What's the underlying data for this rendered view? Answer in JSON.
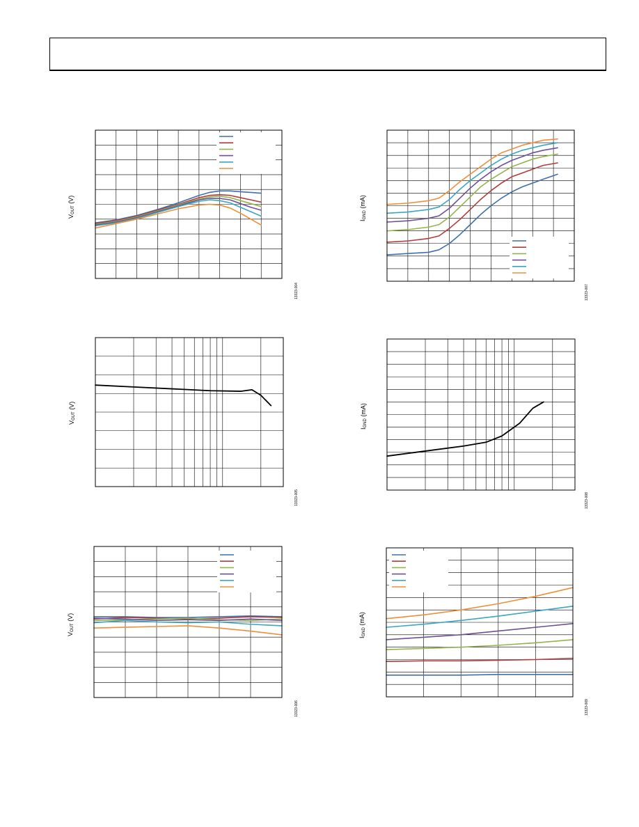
{
  "header": {
    "title": ""
  },
  "colors": {
    "blue": "#3f6fad",
    "red": "#b13c3a",
    "green": "#92b44a",
    "purple": "#6f4f95",
    "cyan": "#3aa6c4",
    "orange": "#ef8e3a",
    "black": "#000000",
    "grid": "#000000"
  },
  "chart_data": [
    {
      "id": "c1",
      "type": "line",
      "ylabel_main": "V",
      "ylabel_sub": "OUT",
      "ylabel_unit": " (V)",
      "fig_id": "13323-004",
      "xscale": "linear",
      "xlim": [
        0,
        9
      ],
      "ylim": [
        0,
        10
      ],
      "xdiv": 9,
      "ydiv": 10,
      "grid": true,
      "legend": "top-right",
      "legend_entries": 6,
      "series": [
        {
          "color": "blue",
          "x": [
            0,
            1,
            2,
            3,
            4,
            5,
            5.5,
            6,
            6.5,
            7,
            7.5,
            8
          ],
          "y": [
            3.75,
            3.95,
            4.25,
            4.65,
            5.1,
            5.6,
            5.8,
            5.9,
            5.9,
            5.85,
            5.8,
            5.75
          ]
        },
        {
          "color": "red",
          "x": [
            0,
            1,
            2,
            3,
            4,
            5,
            5.5,
            6,
            6.5,
            7,
            7.5,
            8
          ],
          "y": [
            3.7,
            3.9,
            4.2,
            4.6,
            5.0,
            5.45,
            5.6,
            5.65,
            5.6,
            5.45,
            5.3,
            5.15
          ]
        },
        {
          "color": "green",
          "x": [
            0,
            1,
            2,
            3,
            4,
            5,
            5.5,
            6,
            6.5,
            7,
            7.5,
            8
          ],
          "y": [
            3.65,
            3.85,
            4.15,
            4.55,
            4.95,
            5.35,
            5.5,
            5.55,
            5.45,
            5.25,
            5.05,
            4.85
          ]
        },
        {
          "color": "purple",
          "x": [
            0,
            1,
            2,
            3,
            4,
            5,
            5.5,
            6,
            6.5,
            7,
            7.5,
            8
          ],
          "y": [
            3.6,
            3.8,
            4.1,
            4.5,
            4.9,
            5.3,
            5.4,
            5.4,
            5.3,
            5.05,
            4.8,
            4.6
          ]
        },
        {
          "color": "cyan",
          "x": [
            0,
            1,
            2,
            3,
            4,
            5,
            5.5,
            6,
            6.5,
            7,
            7.5,
            8
          ],
          "y": [
            3.55,
            3.75,
            4.05,
            4.45,
            4.85,
            5.2,
            5.3,
            5.25,
            5.1,
            4.8,
            4.5,
            4.2
          ]
        },
        {
          "color": "orange",
          "x": [
            0,
            1,
            2,
            3,
            4,
            5,
            5.5,
            6,
            6.5,
            7,
            7.5,
            8
          ],
          "y": [
            3.4,
            3.7,
            4.0,
            4.35,
            4.7,
            4.95,
            5.0,
            4.95,
            4.75,
            4.4,
            4.0,
            3.6
          ]
        }
      ]
    },
    {
      "id": "c2",
      "type": "line",
      "ylabel_main": "I",
      "ylabel_sub": "GND",
      "ylabel_unit": " (mA)",
      "fig_id": "13323-007",
      "xscale": "linear",
      "xlim": [
        0,
        9
      ],
      "ylim": [
        0,
        12
      ],
      "xdiv": 9,
      "ydiv": 12,
      "grid": true,
      "legend": "bottom-right",
      "legend_entries": 6,
      "series": [
        {
          "color": "blue",
          "x": [
            0,
            1,
            2,
            2.5,
            3,
            3.5,
            4,
            4.5,
            5,
            5.5,
            6,
            6.5,
            7,
            7.5,
            8.2
          ],
          "y": [
            2.1,
            2.2,
            2.3,
            2.5,
            3.0,
            3.7,
            4.5,
            5.3,
            6.0,
            6.6,
            7.1,
            7.5,
            7.8,
            8.1,
            8.5
          ]
        },
        {
          "color": "red",
          "x": [
            0,
            1,
            2,
            2.5,
            3,
            3.5,
            4,
            4.5,
            5,
            5.5,
            6,
            6.5,
            7,
            7.5,
            8.2
          ],
          "y": [
            3.1,
            3.2,
            3.4,
            3.6,
            4.2,
            4.9,
            5.7,
            6.5,
            7.2,
            7.8,
            8.3,
            8.6,
            8.9,
            9.2,
            9.4
          ]
        },
        {
          "color": "green",
          "x": [
            0,
            1,
            2,
            2.5,
            3,
            3.5,
            4,
            4.5,
            5,
            5.5,
            6,
            6.5,
            7,
            7.5,
            8.2
          ],
          "y": [
            4.0,
            4.1,
            4.3,
            4.5,
            5.1,
            5.9,
            6.7,
            7.5,
            8.1,
            8.6,
            9.1,
            9.4,
            9.7,
            9.9,
            10.1
          ]
        },
        {
          "color": "purple",
          "x": [
            0,
            1,
            2,
            2.5,
            3,
            3.5,
            4,
            4.5,
            5,
            5.5,
            6,
            6.5,
            7,
            7.5,
            8.2
          ],
          "y": [
            4.7,
            4.8,
            5.0,
            5.2,
            5.8,
            6.6,
            7.4,
            8.1,
            8.7,
            9.2,
            9.6,
            9.9,
            10.2,
            10.4,
            10.6
          ]
        },
        {
          "color": "cyan",
          "x": [
            0,
            1,
            2,
            2.5,
            3,
            3.5,
            4,
            4.5,
            5,
            5.5,
            6,
            6.5,
            7,
            7.5,
            8.2
          ],
          "y": [
            5.4,
            5.5,
            5.7,
            5.9,
            6.5,
            7.3,
            8.0,
            8.6,
            9.2,
            9.7,
            10.1,
            10.4,
            10.6,
            10.8,
            11.0
          ]
        },
        {
          "color": "orange",
          "x": [
            0,
            1,
            2,
            2.5,
            3,
            3.5,
            4,
            4.5,
            5,
            5.5,
            6,
            6.5,
            7,
            7.5,
            8.2
          ],
          "y": [
            6.1,
            6.2,
            6.4,
            6.6,
            7.2,
            7.9,
            8.5,
            9.1,
            9.7,
            10.2,
            10.5,
            10.8,
            11.0,
            11.2,
            11.3
          ]
        }
      ]
    },
    {
      "id": "c3",
      "type": "line",
      "ylabel_main": "V",
      "ylabel_sub": "OUT",
      "ylabel_unit": " (V)",
      "fig_id": "13323-005",
      "xscale": "log",
      "xlim": [
        1,
        30
      ],
      "ylim": [
        0,
        8
      ],
      "ydiv": 8,
      "grid": true,
      "legend": "none",
      "legend_entries": 0,
      "series": [
        {
          "color": "black",
          "x": [
            1,
            2,
            4,
            8,
            14,
            17,
            20,
            24
          ],
          "y": [
            5.45,
            5.35,
            5.25,
            5.15,
            5.12,
            5.2,
            4.9,
            4.35
          ]
        }
      ]
    },
    {
      "id": "c4",
      "type": "line",
      "ylabel_main": "I",
      "ylabel_sub": "GND",
      "ylabel_unit": " (mA)",
      "fig_id": "13323-008",
      "xscale": "log",
      "xlim": [
        1,
        30
      ],
      "ylim": [
        0,
        12
      ],
      "ydiv": 12,
      "grid": true,
      "legend": "none",
      "legend_entries": 0,
      "series": [
        {
          "color": "black",
          "x": [
            1,
            2,
            4,
            6,
            8,
            11,
            14,
            17
          ],
          "y": [
            2.7,
            3.1,
            3.5,
            3.8,
            4.3,
            5.3,
            6.5,
            7.0
          ]
        }
      ]
    },
    {
      "id": "c5",
      "type": "line",
      "ylabel_main": "V",
      "ylabel_sub": "OUT",
      "ylabel_unit": " (V)",
      "fig_id": "13323-006",
      "xscale": "linear",
      "xlim": [
        0,
        6
      ],
      "ylim": [
        0,
        10
      ],
      "xdiv": 6,
      "ydiv": 10,
      "grid": true,
      "legend": "top-right",
      "legend_entries": 6,
      "series": [
        {
          "color": "blue",
          "x": [
            0,
            1,
            2,
            3,
            4,
            5,
            6
          ],
          "y": [
            5.35,
            5.35,
            5.3,
            5.3,
            5.35,
            5.4,
            5.35
          ]
        },
        {
          "color": "red",
          "x": [
            0,
            1,
            2,
            3,
            4,
            5,
            6
          ],
          "y": [
            5.2,
            5.3,
            5.25,
            5.2,
            5.25,
            5.35,
            5.3
          ]
        },
        {
          "color": "green",
          "x": [
            0,
            1,
            2,
            3,
            4,
            5,
            6
          ],
          "y": [
            5.1,
            5.15,
            5.2,
            5.25,
            5.15,
            5.1,
            5.2
          ]
        },
        {
          "color": "purple",
          "x": [
            0,
            1,
            2,
            3,
            4,
            5,
            6
          ],
          "y": [
            5.25,
            5.2,
            5.1,
            5.15,
            5.1,
            5.2,
            5.1
          ]
        },
        {
          "color": "cyan",
          "x": [
            0,
            1,
            2,
            3,
            4,
            5,
            6
          ],
          "y": [
            4.95,
            5.1,
            5.0,
            4.95,
            5.0,
            4.85,
            4.75
          ]
        },
        {
          "color": "orange",
          "x": [
            0,
            1,
            2,
            3,
            4,
            5,
            6
          ],
          "y": [
            4.6,
            4.65,
            4.7,
            4.75,
            4.6,
            4.4,
            4.15
          ]
        }
      ]
    },
    {
      "id": "c6",
      "type": "line",
      "ylabel_main": "I",
      "ylabel_sub": "GND",
      "ylabel_unit": " (mA)",
      "fig_id": "13323-009",
      "xscale": "linear",
      "xlim": [
        0,
        5
      ],
      "ylim": [
        0,
        12
      ],
      "xdiv": 5,
      "ydiv": 12,
      "grid": true,
      "legend": "top-left",
      "legend_entries": 6,
      "series": [
        {
          "color": "blue",
          "x": [
            0,
            1,
            2,
            3,
            4,
            5
          ],
          "y": [
            1.75,
            1.75,
            1.75,
            1.8,
            1.8,
            1.8
          ]
        },
        {
          "color": "red",
          "x": [
            0,
            1,
            2,
            3,
            4,
            5
          ],
          "y": [
            2.85,
            2.9,
            2.9,
            2.95,
            3.0,
            3.1
          ]
        },
        {
          "color": "green",
          "x": [
            0,
            1,
            2,
            3,
            4,
            5
          ],
          "y": [
            3.8,
            3.9,
            4.0,
            4.15,
            4.35,
            4.6
          ]
        },
        {
          "color": "purple",
          "x": [
            0,
            1,
            2,
            3,
            4,
            5
          ],
          "y": [
            4.6,
            4.8,
            5.0,
            5.3,
            5.6,
            5.9
          ]
        },
        {
          "color": "cyan",
          "x": [
            0,
            1,
            2,
            3,
            4,
            5
          ],
          "y": [
            5.6,
            5.85,
            6.15,
            6.5,
            6.9,
            7.3
          ]
        },
        {
          "color": "orange",
          "x": [
            0,
            1,
            2,
            3,
            4,
            5
          ],
          "y": [
            6.3,
            6.6,
            7.0,
            7.5,
            8.1,
            8.8
          ]
        }
      ]
    }
  ]
}
